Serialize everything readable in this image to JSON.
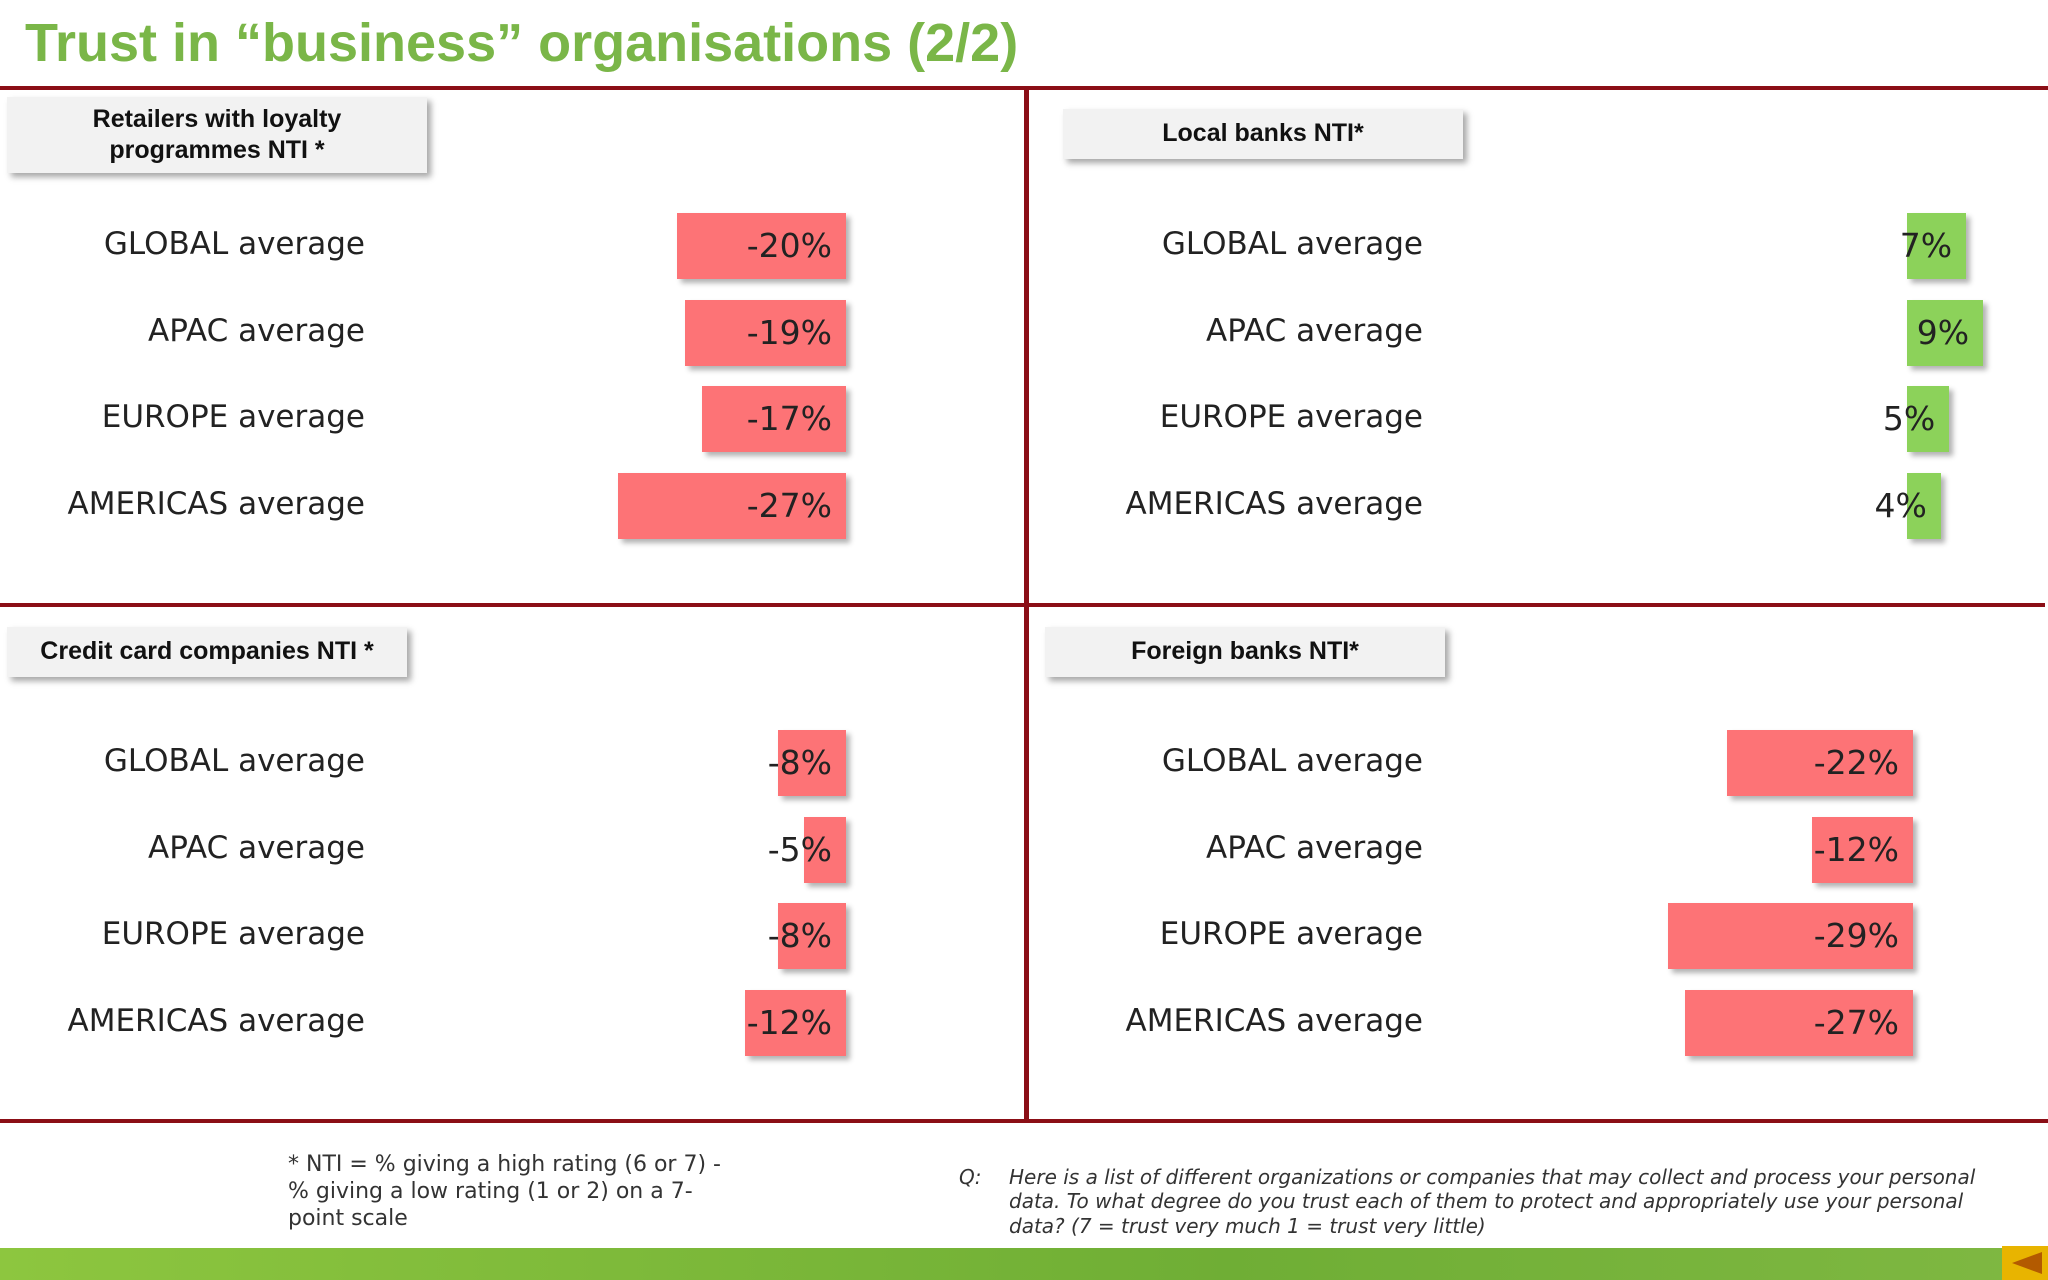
{
  "title": "Trust in “business” organisations (2/2)",
  "chart_data": [
    {
      "type": "bar",
      "title": "Retailers with loyalty programmes NTI *",
      "categories": [
        "GLOBAL average",
        "APAC average",
        "EUROPE average",
        "AMERICAS average"
      ],
      "values": [
        -20,
        -19,
        -17,
        -27
      ],
      "labels": [
        "-20%",
        "-19%",
        "-17%",
        "-27%"
      ]
    },
    {
      "type": "bar",
      "title": "Local banks NTI*",
      "categories": [
        "GLOBAL average",
        "APAC average",
        "EUROPE average",
        "AMERICAS average"
      ],
      "values": [
        7,
        9,
        5,
        4
      ],
      "labels": [
        "7%",
        "9%",
        "5%",
        "4%"
      ]
    },
    {
      "type": "bar",
      "title": "Credit card companies NTI *",
      "categories": [
        "GLOBAL average",
        "APAC average",
        "EUROPE average",
        "AMERICAS average"
      ],
      "values": [
        -8,
        -5,
        -8,
        -12
      ],
      "labels": [
        "-8%",
        "-5%",
        "-8%",
        "-12%"
      ]
    },
    {
      "type": "bar",
      "title": "Foreign banks NTI*",
      "categories": [
        "GLOBAL average",
        "APAC average",
        "EUROPE average",
        "AMERICAS average"
      ],
      "values": [
        -22,
        -12,
        -29,
        -27
      ],
      "labels": [
        "-22%",
        "-12%",
        "-29%",
        "-27%"
      ]
    }
  ],
  "footnote": "* NTI = % giving a high rating (6 or 7) - % giving a low rating (1 or 2) on a 7-point scale",
  "question_prefix": "Q:",
  "question": "Here is a list of different organizations or companies that may collect and process your personal data.  To what degree do you trust each of them to protect and appropriately use your personal data? (7 = trust very much 1 = trust very little)",
  "colors": {
    "negative": "#fd7376",
    "positive": "#8cd25a",
    "title": "#7ab648",
    "rule": "#8b0e16"
  },
  "nav_icon": "triangle-left-icon"
}
